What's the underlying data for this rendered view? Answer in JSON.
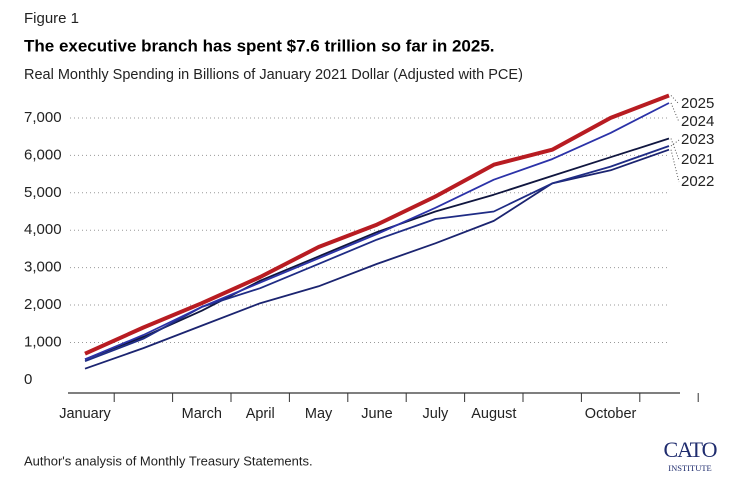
{
  "figure_label": "Figure 1",
  "chart_data": {
    "type": "line",
    "title": "The executive branch has spent $7.6 trillion so far in 2025.",
    "subtitle": "Real Monthly Spending in Billions of January 2021 Dollar (Adjusted with PCE)",
    "categories": [
      "January",
      null,
      "March",
      "April",
      "May",
      "June",
      "July",
      "August",
      null,
      "October",
      null
    ],
    "series": [
      {
        "name": "2025",
        "color": "#b81c22",
        "values": [
          700,
          1400,
          2050,
          2750,
          3550,
          4150,
          4900,
          5750,
          6150,
          7000,
          7600
        ]
      },
      {
        "name": "2024",
        "color": "#2b32a8",
        "values": [
          550,
          1200,
          1950,
          2600,
          3250,
          3900,
          4600,
          5350,
          5900,
          6600,
          7400
        ]
      },
      {
        "name": "2023",
        "color": "#1f2c85",
        "values": [
          500,
          1100,
          1950,
          2450,
          3100,
          3750,
          4300,
          4500,
          5250,
          5700,
          6250
        ]
      },
      {
        "name": "2021",
        "color": "#10163f",
        "values": [
          550,
          1150,
          1850,
          2650,
          3300,
          3950,
          4500,
          4950,
          5450,
          5950,
          6450
        ]
      },
      {
        "name": "2022",
        "color": "#1b2470",
        "values": [
          300,
          850,
          1450,
          2050,
          2500,
          3100,
          3650,
          4250,
          5250,
          5600,
          6150
        ]
      }
    ],
    "ylim": [
      -350,
      7800
    ],
    "yticks": [
      0,
      {
        "value": 1000,
        "label": "1,000"
      },
      {
        "value": 2000,
        "label": "2,000"
      },
      {
        "value": 3000,
        "label": "3,000"
      },
      {
        "value": 4000,
        "label": "4,000"
      },
      {
        "value": 5000,
        "label": "5,000"
      },
      {
        "value": 6000,
        "label": "6,000"
      },
      {
        "value": 7000,
        "label": "7,000"
      }
    ],
    "grid": true,
    "source": "Author's analysis of Monthly Treasury Statements."
  },
  "logo": {
    "name": "CATO",
    "subtitle": "INSTITUTE"
  }
}
